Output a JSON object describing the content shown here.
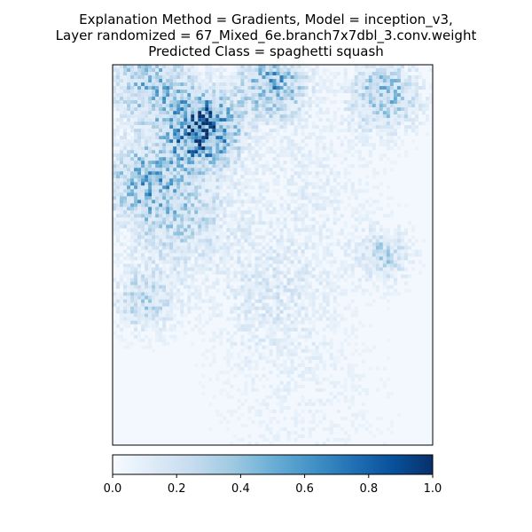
{
  "chart_data": {
    "type": "heatmap",
    "title_lines": [
      "Explanation Method = Gradients, Model = inception_v3,",
      "Layer randomized = 67_Mixed_6e.branch7x7dbl_3.conv.weight",
      "Predicted Class = spaghetti squash"
    ],
    "colormap": "Blues",
    "colors": {
      "low": "#f7fbff",
      "mid": "#6baed6",
      "high": "#08306b",
      "frame": "#000000"
    },
    "colorbar": {
      "orientation": "horizontal",
      "placement": "bottom",
      "range": [
        0.0,
        1.0
      ],
      "ticks": [
        0.0,
        0.2,
        0.4,
        0.6,
        0.8,
        1.0
      ],
      "tick_labels": [
        "0.0",
        "0.2",
        "0.4",
        "0.6",
        "0.8",
        "1.0"
      ]
    },
    "axes_ticks_visible": false,
    "hotspots": [
      {
        "cx": 0.28,
        "cy": 0.17,
        "r": 0.1,
        "intensity": 0.85
      },
      {
        "cx": 0.12,
        "cy": 0.05,
        "r": 0.12,
        "intensity": 0.4
      },
      {
        "cx": 0.5,
        "cy": 0.05,
        "r": 0.1,
        "intensity": 0.45
      },
      {
        "cx": 0.85,
        "cy": 0.08,
        "r": 0.1,
        "intensity": 0.4
      },
      {
        "cx": 0.1,
        "cy": 0.3,
        "r": 0.12,
        "intensity": 0.35
      },
      {
        "cx": 0.2,
        "cy": 0.4,
        "r": 0.15,
        "intensity": 0.25
      },
      {
        "cx": 0.6,
        "cy": 0.3,
        "r": 0.25,
        "intensity": 0.08
      },
      {
        "cx": 0.85,
        "cy": 0.5,
        "r": 0.08,
        "intensity": 0.25
      },
      {
        "cx": 0.5,
        "cy": 0.6,
        "r": 0.2,
        "intensity": 0.12
      },
      {
        "cx": 0.1,
        "cy": 0.62,
        "r": 0.1,
        "intensity": 0.25
      },
      {
        "cx": 0.6,
        "cy": 0.9,
        "r": 0.3,
        "intensity": 0.05
      }
    ]
  }
}
